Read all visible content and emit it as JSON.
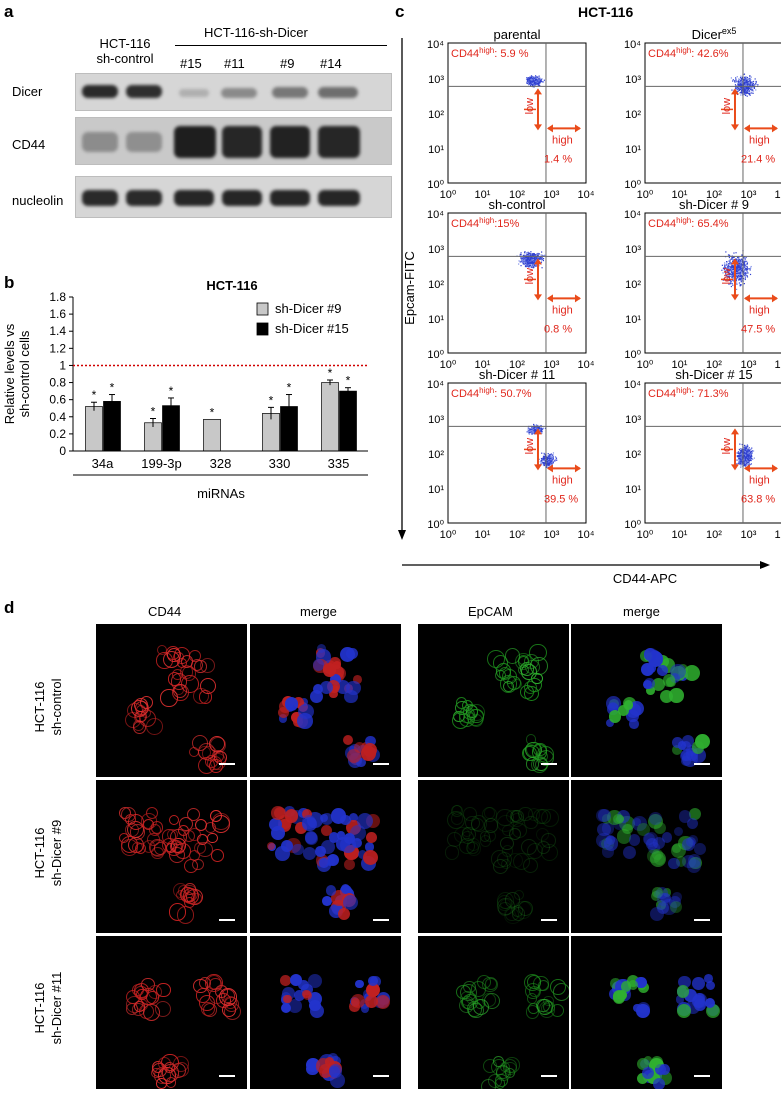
{
  "panel_a": {
    "letter": "a",
    "col_control": [
      "HCT-116",
      "sh-control"
    ],
    "col_group": "HCT-116-sh-Dicer",
    "clones": [
      "#15",
      "#11",
      "#9",
      "#14"
    ],
    "rows": [
      "Dicer",
      "CD44",
      "nucleolin"
    ]
  },
  "panel_b": {
    "letter": "b",
    "group_label": "miRNAs"
  },
  "panel_c": {
    "letter": "c",
    "title": "HCT-116",
    "ylabel": "Epcam-FITC",
    "xlabel": "CD44-APC",
    "tick_labels": [
      "10⁰",
      "10¹",
      "10²",
      "10³",
      "10⁴"
    ],
    "low_label": "low",
    "high_label": "high",
    "plots": [
      {
        "title": "parental",
        "cd44_high_value": ": 5.9 %",
        "high_pct": "1.4 %"
      },
      {
        "title": "Dicer",
        "title_sup": "ex5",
        "cd44_high_value": ": 42.6%",
        "high_pct": "21.4 %"
      },
      {
        "title": "sh-control",
        "cd44_high_value": ":15%",
        "high_pct": "0.8 %"
      },
      {
        "title": "sh-Dicer # 9",
        "cd44_high_value": ": 65.4%",
        "high_pct": "47.5 %"
      },
      {
        "title": "sh-Dicer # 11",
        "cd44_high_value": ": 50.7%",
        "high_pct": "39.5 %"
      },
      {
        "title": "sh-Dicer # 15",
        "cd44_high_value": ": 71.3%",
        "high_pct": "63.8 %"
      }
    ],
    "cd44_high_prefix": "CD44",
    "cd44_high_sup": "high"
  },
  "panel_d": {
    "letter": "d",
    "columns": [
      "CD44",
      "merge",
      "EpCAM",
      "merge"
    ],
    "rows": [
      [
        "HCT-116",
        "sh-control"
      ],
      [
        "HCT-116",
        "sh-Dicer #9"
      ],
      [
        "HCT-116",
        "sh-Dicer #11"
      ]
    ]
  },
  "chart_data": {
    "type": "bar",
    "title": "HCT-116",
    "xlabel": "miRNAs",
    "ylabel": "Relative levels vs sh-control  cells",
    "categories": [
      "34a",
      "199-3p",
      "328",
      "330",
      "335"
    ],
    "ylim": [
      0,
      1.8
    ],
    "yticks": [
      "0",
      "0.2",
      "0.4",
      "0.6",
      "0.8",
      "1",
      "1.2",
      "1.4",
      "1.6",
      "1.8"
    ],
    "reference_line": 1,
    "legend_position": "top-right",
    "series": [
      {
        "name": "sh-Dicer #9",
        "color": "#c8c8c8",
        "values": [
          0.52,
          0.33,
          0.37,
          0.44,
          0.8
        ],
        "errors": [
          0.05,
          0.05,
          0.0,
          0.07,
          0.03
        ]
      },
      {
        "name": "sh-Dicer #15",
        "color": "#000000",
        "values": [
          0.58,
          0.53,
          null,
          0.52,
          0.7
        ],
        "errors": [
          0.08,
          0.09,
          null,
          0.14,
          0.04
        ]
      }
    ],
    "significance_marker": "*"
  }
}
